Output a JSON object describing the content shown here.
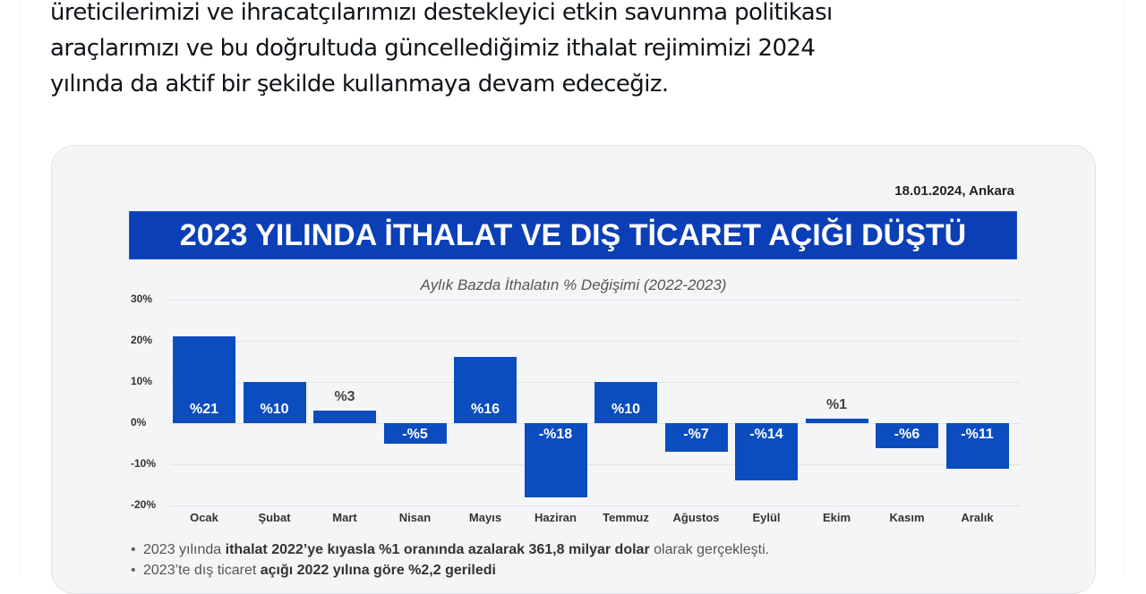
{
  "tweet": {
    "lines": [
      "üreticilerimizi ve ihracatçılarımızı destekleyici etkin savunma politikası",
      "araçlarımızı ve bu doğrultuda güncellediğimiz ithalat rejimimizi 2024",
      "yılında da aktif bir şekilde kullanmaya devam edeceğiz."
    ]
  },
  "infographic": {
    "date_location": "18.01.2024, Ankara",
    "title": "2023 YILINDA İTHALAT VE DIŞ TİCARET AÇIĞI DÜŞTÜ",
    "subtitle": "Aylık Bazda İthalatın % Değişimi (2022-2023)",
    "bar_color": "#0b4dbf",
    "banner_color": "#0b3fb5",
    "y_ticks": [
      "30%",
      "20%",
      "10%",
      "0%",
      "-10%",
      "-20%"
    ],
    "bullets": [
      {
        "pre": "2023 yılında ",
        "bold": "ithalat 2022’ye kıyasla %1 oranında azalarak 361,8 milyar dolar",
        "post": " olarak gerçekleşti."
      },
      {
        "pre": "2023’te dış ticaret ",
        "bold": "açığı 2022 yılına göre %2,2 geriledi",
        "post": ""
      }
    ]
  },
  "chart_data": {
    "type": "bar",
    "title": "2023 YILINDA İTHALAT VE DIŞ TİCARET AÇIĞI DÜŞTÜ",
    "subtitle": "Aylık Bazda İthalatın % Değişimi (2022-2023)",
    "categories": [
      "Ocak",
      "Şubat",
      "Mart",
      "Nisan",
      "Mayıs",
      "Haziran",
      "Temmuz",
      "Ağustos",
      "Eylül",
      "Ekim",
      "Kasım",
      "Aralık"
    ],
    "values": [
      21,
      10,
      3,
      -5,
      16,
      -18,
      10,
      -7,
      -14,
      1,
      -6,
      -11
    ],
    "data_labels": [
      "%21",
      "%10",
      "%3",
      "-%5",
      "%16",
      "-%18",
      "%10",
      "-%7",
      "-%14",
      "%1",
      "-%6",
      "-%11"
    ],
    "xlabel": "",
    "ylabel": "",
    "ylim": [
      -20,
      30
    ],
    "y_ticks": [
      30,
      20,
      10,
      0,
      -10,
      -20
    ],
    "grid": true,
    "legend": "none"
  }
}
